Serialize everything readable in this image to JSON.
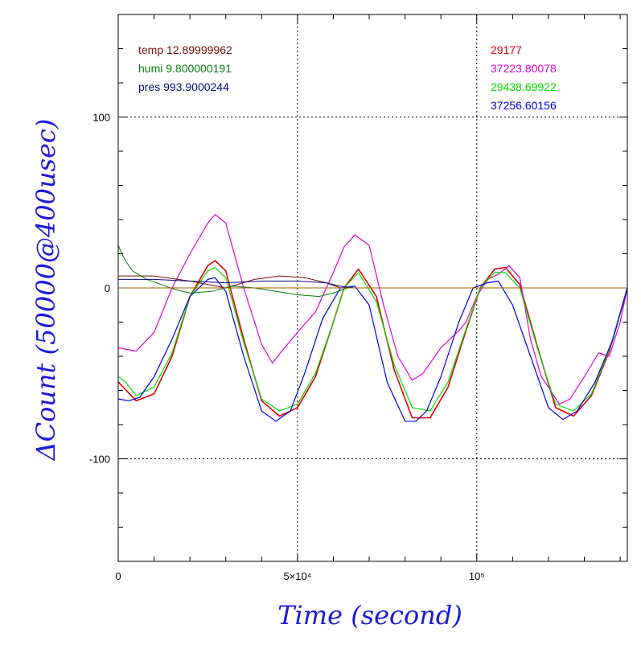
{
  "chart_data": {
    "type": "line",
    "xlabel": "Time (second)",
    "ylabel": "ΔCount (50000@400usec)",
    "xlim": [
      0,
      142000
    ],
    "ylim": [
      -160,
      160
    ],
    "x_ticks": [
      {
        "value": 0,
        "label": "0"
      },
      {
        "value": 50000,
        "label": "5×10⁴"
      },
      {
        "value": 100000,
        "label": "10⁵"
      }
    ],
    "y_ticks": [
      {
        "value": 100,
        "label": "100"
      },
      {
        "value": 0,
        "label": "0"
      },
      {
        "value": -100,
        "label": "-100"
      }
    ],
    "grid": true,
    "legend_left": [
      {
        "label": "temp 12.89999962",
        "color": "#7a0a0a"
      },
      {
        "label": "humi 9.800000191",
        "color": "#0a7a0a"
      },
      {
        "label": "pres 993.9000244",
        "color": "#0a0a7a"
      }
    ],
    "legend_right": [
      {
        "label": "29177",
        "color": "#e00000"
      },
      {
        "label": "37223.80078",
        "color": "#e000e0"
      },
      {
        "label": "29438.69922",
        "color": "#00e000"
      },
      {
        "label": "37256.60156",
        "color": "#0000e0"
      }
    ],
    "series": [
      {
        "color": "#e00000",
        "width": 1.6,
        "x": [
          0,
          5000,
          10000,
          15000,
          20000,
          25000,
          27000,
          30000,
          35000,
          40000,
          45000,
          50000,
          55000,
          60000,
          63000,
          67000,
          72000,
          77000,
          82000,
          87000,
          92000,
          97000,
          101000,
          105000,
          108000,
          112000,
          117000,
          122000,
          127000,
          132000,
          137000,
          142000
        ],
        "y": [
          -55,
          -66,
          -62,
          -40,
          -5,
          13,
          16,
          10,
          -30,
          -66,
          -75,
          -70,
          -52,
          -20,
          0,
          11,
          -5,
          -48,
          -76,
          -76,
          -58,
          -25,
          0,
          11,
          12,
          2,
          -35,
          -70,
          -75,
          -63,
          -37,
          0
        ]
      },
      {
        "color": "#e000e0",
        "width": 1.2,
        "x": [
          0,
          5000,
          10000,
          15000,
          20000,
          25000,
          27000,
          30000,
          35000,
          40000,
          43000,
          46000,
          50000,
          55000,
          60000,
          63000,
          66000,
          70000,
          74000,
          78000,
          82000,
          85000,
          90000,
          95000,
          97000,
          100000,
          103000,
          106000,
          109000,
          112000,
          115000,
          118000,
          120000,
          123000,
          126000,
          130000,
          134000,
          137000,
          140000,
          142000
        ],
        "y": [
          -35,
          -37,
          -26,
          0,
          20,
          38,
          43,
          38,
          0,
          -33,
          -44,
          -36,
          -26,
          -14,
          9,
          24,
          31,
          25,
          -10,
          -40,
          -54,
          -50,
          -35,
          -25,
          -20,
          -5,
          5,
          8,
          13,
          6,
          -30,
          -52,
          -58,
          -68,
          -65,
          -52,
          -38,
          -40,
          -20,
          0
        ]
      },
      {
        "color": "#00e000",
        "width": 1.2,
        "x": [
          0,
          2000,
          5000,
          10000,
          15000,
          20000,
          25000,
          27000,
          30000,
          35000,
          40000,
          45000,
          50000,
          55000,
          60000,
          63000,
          67000,
          72000,
          77000,
          82000,
          87000,
          92000,
          97000,
          101000,
          105000,
          108000,
          112000,
          117000,
          122000,
          127000,
          132000,
          137000,
          142000
        ],
        "y": [
          -52,
          -55,
          -63,
          -58,
          -38,
          -5,
          10,
          12,
          6,
          -32,
          -65,
          -72,
          -68,
          -50,
          -20,
          0,
          9,
          -8,
          -45,
          -70,
          -72,
          -55,
          -24,
          0,
          9,
          9,
          0,
          -36,
          -68,
          -72,
          -62,
          -36,
          0
        ]
      },
      {
        "color": "#0000e0",
        "width": 1.2,
        "x": [
          0,
          3000,
          6000,
          10000,
          15000,
          20000,
          25000,
          27000,
          30000,
          35000,
          40000,
          44000,
          48000,
          52000,
          57000,
          62000,
          66000,
          70000,
          75000,
          80000,
          83000,
          86000,
          90000,
          95000,
          99000,
          103000,
          106000,
          110000,
          115000,
          120000,
          124000,
          128000,
          133000,
          138000,
          142000
        ],
        "y": [
          -65,
          -66,
          -64,
          -52,
          -30,
          -5,
          5,
          6,
          -2,
          -40,
          -72,
          -78,
          -72,
          -50,
          -18,
          0,
          1,
          -10,
          -55,
          -78,
          -78,
          -72,
          -52,
          -20,
          0,
          3,
          4,
          -10,
          -40,
          -70,
          -77,
          -72,
          -55,
          -30,
          0
        ]
      },
      {
        "color": "#7a0a0a",
        "width": 1,
        "x": [
          0,
          10000,
          20000,
          30000,
          38000,
          45000,
          52000,
          58000,
          62000,
          66000
        ],
        "y": [
          7,
          7,
          4,
          0,
          5,
          7,
          6,
          3,
          0,
          0
        ]
      },
      {
        "color": "#0a7a0a",
        "width": 1,
        "x": [
          0,
          1000,
          2000,
          4000,
          8000,
          12000,
          16000,
          20000,
          26000,
          32000,
          38000,
          44000,
          50000,
          56000,
          60000,
          64000,
          66000
        ],
        "y": [
          25,
          20,
          16,
          10,
          5,
          2,
          -1,
          -3,
          -2,
          1,
          0,
          -2,
          -4,
          -5,
          -3,
          0,
          0
        ]
      },
      {
        "color": "#0a0a7a",
        "width": 1,
        "x": [
          0,
          10000,
          20000,
          30000,
          40000,
          50000,
          58000,
          62000,
          66000
        ],
        "y": [
          5,
          5,
          4,
          3,
          4,
          4,
          3,
          1,
          0
        ]
      },
      {
        "color": "#a06000",
        "width": 1,
        "x": [
          0,
          142000
        ],
        "y": [
          0,
          0
        ]
      }
    ]
  }
}
